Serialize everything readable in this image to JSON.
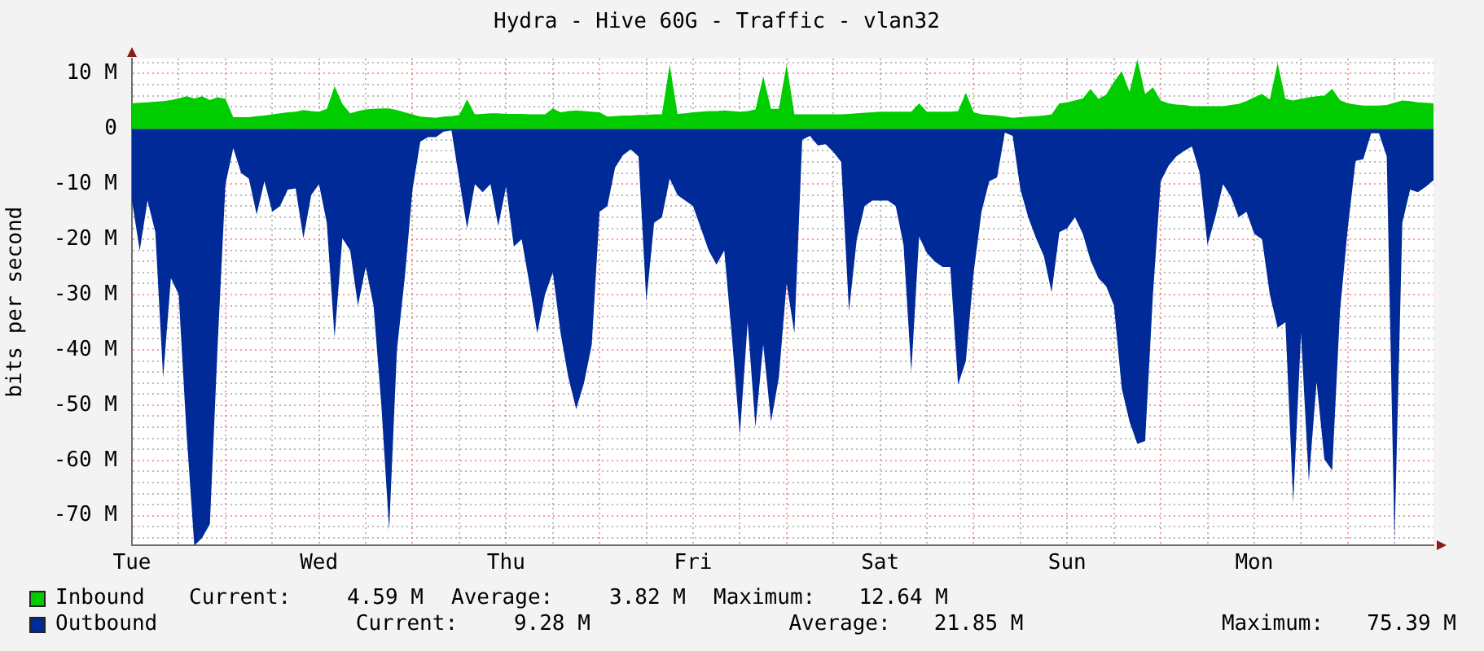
{
  "chart_data": {
    "type": "area",
    "title": "Hydra - Hive 60G - Traffic - vlan32",
    "ylabel": "bits per second",
    "categories": [
      "Tue",
      null,
      null,
      null,
      null,
      null,
      null,
      null,
      null,
      null,
      null,
      null,
      null,
      null,
      null,
      null,
      null,
      null,
      null,
      null,
      null,
      null,
      null,
      null,
      "Wed",
      null,
      null,
      null,
      null,
      null,
      null,
      null,
      null,
      null,
      null,
      null,
      null,
      null,
      null,
      null,
      null,
      null,
      null,
      null,
      null,
      null,
      null,
      null,
      "Thu",
      null,
      null,
      null,
      null,
      null,
      null,
      null,
      null,
      null,
      null,
      null,
      null,
      null,
      null,
      null,
      null,
      null,
      null,
      null,
      null,
      null,
      null,
      null,
      "Fri",
      null,
      null,
      null,
      null,
      null,
      null,
      null,
      null,
      null,
      null,
      null,
      null,
      null,
      null,
      null,
      null,
      null,
      null,
      null,
      null,
      null,
      null,
      null,
      "Sat",
      null,
      null,
      null,
      null,
      null,
      null,
      null,
      null,
      null,
      null,
      null,
      null,
      null,
      null,
      null,
      null,
      null,
      null,
      null,
      null,
      null,
      null,
      null,
      "Sun",
      null,
      null,
      null,
      null,
      null,
      null,
      null,
      null,
      null,
      null,
      null,
      null,
      null,
      null,
      null,
      null,
      null,
      null,
      null,
      null,
      null,
      null,
      null,
      "Mon",
      null,
      null,
      null,
      null,
      null,
      null,
      null,
      null,
      null,
      null,
      null,
      null,
      null,
      null,
      null,
      null,
      null,
      null,
      null,
      null,
      null,
      null,
      null
    ],
    "ylim": [
      -75.4,
      12.7
    ],
    "yticks": [
      {
        "value": -74,
        "label": null
      },
      {
        "value": -72,
        "label": null
      },
      {
        "value": -70,
        "label": "-70 M"
      },
      {
        "value": -68,
        "label": null
      },
      {
        "value": -66,
        "label": null
      },
      {
        "value": -64,
        "label": null
      },
      {
        "value": -62,
        "label": null
      },
      {
        "value": -60,
        "label": "-60 M"
      },
      {
        "value": -58,
        "label": null
      },
      {
        "value": -56,
        "label": null
      },
      {
        "value": -54,
        "label": null
      },
      {
        "value": -52,
        "label": null
      },
      {
        "value": -50,
        "label": "-50 M"
      },
      {
        "value": -48,
        "label": null
      },
      {
        "value": -46,
        "label": null
      },
      {
        "value": -44,
        "label": null
      },
      {
        "value": -42,
        "label": null
      },
      {
        "value": -40,
        "label": "-40 M"
      },
      {
        "value": -38,
        "label": null
      },
      {
        "value": -36,
        "label": null
      },
      {
        "value": -34,
        "label": null
      },
      {
        "value": -32,
        "label": null
      },
      {
        "value": -30,
        "label": "-30 M"
      },
      {
        "value": -28,
        "label": null
      },
      {
        "value": -26,
        "label": null
      },
      {
        "value": -24,
        "label": null
      },
      {
        "value": -22,
        "label": null
      },
      {
        "value": -20,
        "label": "-20 M"
      },
      {
        "value": -18,
        "label": null
      },
      {
        "value": -16,
        "label": null
      },
      {
        "value": -14,
        "label": null
      },
      {
        "value": -12,
        "label": null
      },
      {
        "value": -10,
        "label": "-10 M"
      },
      {
        "value": -8,
        "label": null
      },
      {
        "value": -6,
        "label": null
      },
      {
        "value": -4,
        "label": null
      },
      {
        "value": -2,
        "label": null
      },
      0,
      {
        "value": 4,
        "label": null
      },
      {
        "value": 6,
        "label": null
      },
      {
        "value": 8,
        "label": null
      },
      {
        "value": 10,
        "label": "10 M"
      },
      {
        "value": 12,
        "label": null
      }
    ],
    "grid": true,
    "legend": "bottom",
    "annotations": [
      "Current: 4.59 M",
      "Average: 3.82 M",
      "Maximum: 12.64 M",
      "Current: 9.28 M",
      "Average: 21.85 M",
      "Maximum: 75.39 M"
    ],
    "series": [
      {
        "name": "Inbound",
        "color": "#00cc00",
        "values": [
          4.6,
          4.7,
          4.8,
          4.9,
          5.0,
          5.2,
          5.5,
          5.9,
          5.5,
          5.9,
          5.2,
          5.7,
          5.4,
          2.1,
          2.1,
          2.1,
          2.3,
          2.4,
          2.6,
          2.8,
          3.0,
          3.1,
          3.4,
          3.2,
          3.1,
          3.6,
          7.7,
          4.5,
          2.8,
          3.2,
          3.5,
          3.6,
          3.7,
          3.7,
          3.4,
          3.0,
          2.6,
          2.2,
          2.1,
          2.0,
          2.2,
          2.3,
          2.5,
          5.3,
          2.6,
          2.7,
          2.8,
          2.8,
          2.7,
          2.7,
          2.7,
          2.6,
          2.6,
          2.6,
          3.7,
          3.0,
          3.2,
          3.3,
          3.2,
          3.1,
          3.0,
          2.2,
          2.3,
          2.4,
          2.4,
          2.5,
          2.5,
          2.6,
          2.6,
          11.6,
          2.7,
          2.8,
          3.0,
          3.1,
          3.2,
          3.2,
          3.3,
          3.2,
          3.1,
          3.2,
          3.5,
          9.5,
          3.6,
          3.6,
          11.6,
          2.6,
          2.6,
          2.6,
          2.6,
          2.6,
          2.6,
          2.6,
          2.7,
          2.8,
          2.9,
          3.0,
          3.1,
          3.1,
          3.1,
          3.1,
          3.1,
          4.6,
          3.1,
          3.1,
          3.1,
          3.1,
          3.2,
          6.5,
          3.0,
          2.6,
          2.5,
          2.4,
          2.2,
          2.0,
          2.1,
          2.2,
          2.3,
          2.4,
          2.6,
          4.6,
          4.8,
          5.1,
          5.5,
          7.2,
          5.4,
          6.2,
          8.5,
          10.4,
          6.7,
          12.6,
          6.3,
          7.5,
          5.1,
          4.6,
          4.4,
          4.3,
          4.1,
          4.1,
          4.1,
          4.1,
          4.1,
          4.3,
          4.5,
          5.0,
          5.7,
          6.3,
          5.3,
          11.9,
          5.4,
          5.1,
          5.4,
          5.7,
          5.9,
          6.0,
          7.2,
          5.2,
          4.6,
          4.4,
          4.2,
          4.2,
          4.2,
          4.3,
          4.7,
          5.1,
          5.0,
          4.8,
          4.7,
          4.6
        ]
      },
      {
        "name": "Outbound",
        "color": "#002a97",
        "values": [
          -13,
          -22,
          -13,
          -18.7,
          -45,
          -27,
          -30,
          -55,
          -75.4,
          -74,
          -71.5,
          -39,
          -10,
          -3.5,
          -8,
          -9,
          -15.5,
          -9.5,
          -15,
          -14,
          -11,
          -10.8,
          -19.8,
          -12,
          -10,
          -17,
          -37.8,
          -19.8,
          -22,
          -32,
          -25,
          -32,
          -50,
          -72.6,
          -40,
          -27,
          -11,
          -2.3,
          -1.5,
          -1.5,
          -0.5,
          -0.3,
          -9.2,
          -18,
          -10,
          -11.5,
          -10,
          -17.6,
          -10.5,
          -21.3,
          -20,
          -28,
          -37,
          -30,
          -26,
          -37,
          -45,
          -50.7,
          -46,
          -39,
          -15,
          -14,
          -7,
          -4.8,
          -3.7,
          -5,
          -31.2,
          -17,
          -16,
          -9,
          -12,
          -13,
          -14,
          -18,
          -22,
          -24.6,
          -22,
          -38,
          -55.4,
          -35,
          -54,
          -39,
          -53,
          -45,
          -28,
          -37,
          -2,
          -1.3,
          -3,
          -2.8,
          -4.2,
          -6,
          -33,
          -20,
          -14,
          -13,
          -13,
          -13,
          -14,
          -21,
          -44,
          -19.5,
          -22.5,
          -24,
          -25,
          -25,
          -46.3,
          -42,
          -26,
          -15,
          -9.5,
          -8.8,
          -0.7,
          -1.3,
          -11,
          -16,
          -19.8,
          -23,
          -29.6,
          -18.7,
          -18,
          -16,
          -19,
          -23.8,
          -27,
          -28.5,
          -32,
          -47,
          -53,
          -57,
          -56.5,
          -30,
          -9.5,
          -6.7,
          -5,
          -4,
          -3.2,
          -8,
          -21,
          -16,
          -10,
          -12.3,
          -16,
          -15,
          -19,
          -20,
          -30,
          -36,
          -35,
          -67.7,
          -37,
          -63.8,
          -45.8,
          -59.8,
          -61.8,
          -33,
          -18,
          -5.8,
          -5.5,
          -0.8,
          -0.8,
          -5,
          -74.4,
          -17,
          -11,
          -11.5,
          -10.5,
          -9.3
        ]
      }
    ]
  }
}
